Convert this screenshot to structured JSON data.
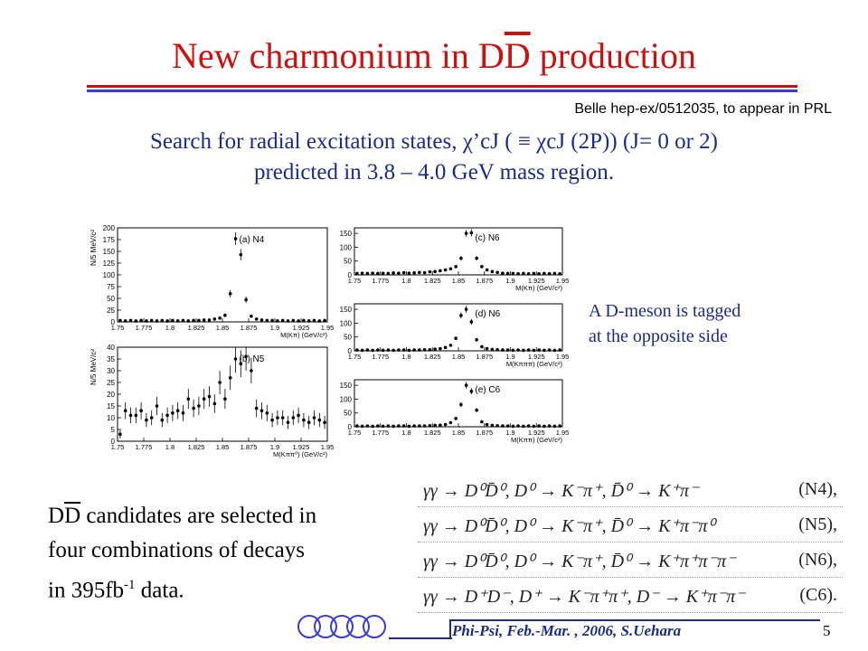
{
  "header": {
    "title": "New charmonium in DD production",
    "title_pre": "New charmonium in D",
    "title_bar": "D",
    "title_post": " production",
    "reference": "Belle hep-ex/0512035, to appear in PRL"
  },
  "headline": {
    "line1": "Search for radial excitation states, χ’cJ ( ≡ χcJ (2P)) (J= 0 or 2)",
    "line2": "predicted in 3.8 – 4.0 GeV mass region."
  },
  "side_note": {
    "line1": "A D-meson is tagged",
    "line2": "at the opposite side"
  },
  "selection": {
    "line1_bar": "D",
    "line1_pre": "D",
    "line1_rest": " candidates are selected in",
    "line2": "four combinations of decays",
    "line3_pre": "in 395fb",
    "line3_sup": "-1",
    "line3_post": " data."
  },
  "decays": [
    {
      "equation": "γγ → D⁰D̄⁰,  D⁰ → K⁻π⁺,  D̄⁰ → K⁺π⁻",
      "tag": "(N4),"
    },
    {
      "equation": "γγ → D⁰D̄⁰,  D⁰ → K⁻π⁺,  D̄⁰ → K⁺π⁻π⁰",
      "tag": "(N5),"
    },
    {
      "equation": "γγ → D⁰D̄⁰,  D⁰ → K⁻π⁺,  D̄⁰ → K⁺π⁺π⁻π⁻",
      "tag": "(N6),"
    },
    {
      "equation": "γγ → D⁺D⁻,  D⁺ → K⁻π⁺π⁺,  D⁻ → K⁺π⁻π⁻",
      "tag": "(C6)."
    }
  ],
  "footer": {
    "text": "Phi-Psi, Feb.-Mar. , 2006, S.Uehara",
    "page": "5"
  },
  "chart_data": [
    {
      "type": "scatter",
      "label": "(a) N4",
      "ylabel": "N/5 MeV/c²",
      "xlabel": "M(Kπ) (GeV/c²)",
      "xlim": [
        1.75,
        1.95
      ],
      "ylim": [
        0,
        200
      ],
      "yticks": [
        0,
        25,
        50,
        75,
        100,
        125,
        150,
        175,
        200
      ],
      "xticks": [
        "1.75",
        "1.775",
        "1.8",
        "1.825",
        "1.85",
        "1.875",
        "1.9",
        "1.925",
        "1.95"
      ],
      "points": [
        [
          1.7525,
          3
        ],
        [
          1.7575,
          2
        ],
        [
          1.7625,
          3
        ],
        [
          1.7675,
          2
        ],
        [
          1.7725,
          3
        ],
        [
          1.7775,
          2
        ],
        [
          1.7825,
          3
        ],
        [
          1.7875,
          2
        ],
        [
          1.7925,
          3
        ],
        [
          1.7975,
          2
        ],
        [
          1.8025,
          3
        ],
        [
          1.8075,
          2
        ],
        [
          1.8125,
          3
        ],
        [
          1.8175,
          2
        ],
        [
          1.8225,
          3
        ],
        [
          1.8275,
          3
        ],
        [
          1.8325,
          4
        ],
        [
          1.8375,
          4
        ],
        [
          1.8425,
          6
        ],
        [
          1.8475,
          8
        ],
        [
          1.8525,
          14
        ],
        [
          1.8575,
          60
        ],
        [
          1.8625,
          177
        ],
        [
          1.8675,
          143
        ],
        [
          1.8725,
          47
        ],
        [
          1.8775,
          12
        ],
        [
          1.8825,
          6
        ],
        [
          1.8875,
          4
        ],
        [
          1.8925,
          3
        ],
        [
          1.8975,
          3
        ],
        [
          1.9025,
          2
        ],
        [
          1.9075,
          3
        ],
        [
          1.9125,
          2
        ],
        [
          1.9175,
          3
        ],
        [
          1.9225,
          2
        ],
        [
          1.9275,
          3
        ],
        [
          1.9325,
          2
        ],
        [
          1.9375,
          3
        ],
        [
          1.9425,
          2
        ],
        [
          1.9475,
          3
        ]
      ]
    },
    {
      "type": "scatter",
      "label": "(b) N5",
      "ylabel": "N/5 MeV/c²",
      "xlabel": "M(Kππ⁰) (GeV/c²)",
      "xlim": [
        1.75,
        1.95
      ],
      "ylim": [
        0,
        40
      ],
      "yticks": [
        0,
        5,
        10,
        15,
        20,
        25,
        30,
        35,
        40
      ],
      "xticks": [
        "1.75",
        "1.775",
        "1.8",
        "1.825",
        "1.85",
        "1.875",
        "1.9",
        "1.925",
        "1.95"
      ],
      "points": [
        [
          1.7525,
          3
        ],
        [
          1.7575,
          13
        ],
        [
          1.7625,
          11
        ],
        [
          1.7675,
          11
        ],
        [
          1.7725,
          13
        ],
        [
          1.7775,
          9
        ],
        [
          1.7825,
          10
        ],
        [
          1.7875,
          15
        ],
        [
          1.7925,
          9
        ],
        [
          1.7975,
          11
        ],
        [
          1.8025,
          12
        ],
        [
          1.8075,
          13
        ],
        [
          1.8125,
          12
        ],
        [
          1.8175,
          18
        ],
        [
          1.8225,
          14
        ],
        [
          1.8275,
          15
        ],
        [
          1.8325,
          18
        ],
        [
          1.8375,
          19
        ],
        [
          1.8425,
          16
        ],
        [
          1.8475,
          25
        ],
        [
          1.8525,
          18
        ],
        [
          1.8575,
          27
        ],
        [
          1.8625,
          35
        ],
        [
          1.8675,
          33
        ],
        [
          1.8725,
          36
        ],
        [
          1.8775,
          30
        ],
        [
          1.8825,
          14
        ],
        [
          1.8875,
          13
        ],
        [
          1.8925,
          12
        ],
        [
          1.8975,
          9
        ],
        [
          1.9025,
          10
        ],
        [
          1.9075,
          10
        ],
        [
          1.9125,
          8
        ],
        [
          1.9175,
          10
        ],
        [
          1.9225,
          11
        ],
        [
          1.9275,
          9
        ],
        [
          1.9325,
          8
        ],
        [
          1.9375,
          10
        ],
        [
          1.9425,
          9
        ],
        [
          1.9475,
          8
        ]
      ]
    },
    {
      "type": "scatter",
      "label": "(c) N6",
      "ylabel": "",
      "xlabel": "M(Kπ) (GeV/c²)",
      "xlim": [
        1.75,
        1.95
      ],
      "ylim": [
        0,
        170
      ],
      "yticks": [
        0,
        50,
        100,
        150
      ],
      "xticks": [
        "1.75",
        "1.775",
        "1.8",
        "1.825",
        "1.85",
        "1.875",
        "1.9",
        "1.925",
        "1.95"
      ],
      "points": [
        [
          1.7525,
          5
        ],
        [
          1.7575,
          6
        ],
        [
          1.7625,
          5
        ],
        [
          1.7675,
          6
        ],
        [
          1.7725,
          5
        ],
        [
          1.7775,
          6
        ],
        [
          1.7825,
          5
        ],
        [
          1.7875,
          7
        ],
        [
          1.7925,
          6
        ],
        [
          1.7975,
          8
        ],
        [
          1.8025,
          6
        ],
        [
          1.8075,
          7
        ],
        [
          1.8125,
          9
        ],
        [
          1.8175,
          8
        ],
        [
          1.8225,
          11
        ],
        [
          1.8275,
          12
        ],
        [
          1.8325,
          15
        ],
        [
          1.8375,
          18
        ],
        [
          1.8425,
          22
        ],
        [
          1.8475,
          30
        ],
        [
          1.8525,
          60
        ],
        [
          1.8575,
          150
        ],
        [
          1.8625,
          152
        ],
        [
          1.8675,
          60
        ],
        [
          1.8725,
          30
        ],
        [
          1.8775,
          18
        ],
        [
          1.8825,
          12
        ],
        [
          1.8875,
          9
        ],
        [
          1.8925,
          6
        ],
        [
          1.8975,
          5
        ],
        [
          1.9025,
          5
        ],
        [
          1.9075,
          4
        ],
        [
          1.9125,
          5
        ],
        [
          1.9175,
          4
        ],
        [
          1.9225,
          5
        ],
        [
          1.9275,
          4
        ],
        [
          1.9325,
          5
        ],
        [
          1.9375,
          4
        ],
        [
          1.9425,
          5
        ],
        [
          1.9475,
          4
        ]
      ]
    },
    {
      "type": "scatter",
      "label": "(d) N6",
      "ylabel": "",
      "xlabel": "M(Kπππ) (GeV/c²)",
      "xlim": [
        1.75,
        1.95
      ],
      "ylim": [
        0,
        170
      ],
      "yticks": [
        0,
        50,
        100,
        150
      ],
      "xticks": [
        "1.75",
        "1.775",
        "1.8",
        "1.825",
        "1.85",
        "1.875",
        "1.9",
        "1.925",
        "1.95"
      ],
      "points": [
        [
          1.7525,
          3
        ],
        [
          1.7575,
          2
        ],
        [
          1.7625,
          3
        ],
        [
          1.7675,
          2
        ],
        [
          1.7725,
          3
        ],
        [
          1.7775,
          2
        ],
        [
          1.7825,
          3
        ],
        [
          1.7875,
          2
        ],
        [
          1.7925,
          3
        ],
        [
          1.7975,
          3
        ],
        [
          1.8025,
          2
        ],
        [
          1.8075,
          3
        ],
        [
          1.8125,
          3
        ],
        [
          1.8175,
          4
        ],
        [
          1.8225,
          4
        ],
        [
          1.8275,
          6
        ],
        [
          1.8325,
          8
        ],
        [
          1.8375,
          12
        ],
        [
          1.8425,
          20
        ],
        [
          1.8475,
          45
        ],
        [
          1.8525,
          128
        ],
        [
          1.8575,
          150
        ],
        [
          1.8625,
          105
        ],
        [
          1.8675,
          40
        ],
        [
          1.8725,
          15
        ],
        [
          1.8775,
          8
        ],
        [
          1.8825,
          5
        ],
        [
          1.8875,
          4
        ],
        [
          1.8925,
          3
        ],
        [
          1.8975,
          3
        ],
        [
          1.9025,
          2
        ],
        [
          1.9075,
          3
        ],
        [
          1.9125,
          2
        ],
        [
          1.9175,
          3
        ],
        [
          1.9225,
          2
        ],
        [
          1.9275,
          3
        ],
        [
          1.9325,
          2
        ],
        [
          1.9375,
          3
        ],
        [
          1.9425,
          2
        ],
        [
          1.9475,
          3
        ]
      ]
    },
    {
      "type": "scatter",
      "label": "(e) C6",
      "ylabel": "",
      "xlabel": "M(Kππ) (GeV/c²)",
      "xlim": [
        1.75,
        1.95
      ],
      "ylim": [
        0,
        170
      ],
      "yticks": [
        0,
        50,
        100,
        150
      ],
      "xticks": [
        "1.75",
        "1.775",
        "1.8",
        "1.825",
        "1.85",
        "1.875",
        "1.9",
        "1.925",
        "1.95"
      ],
      "points": [
        [
          1.7525,
          3
        ],
        [
          1.7575,
          2
        ],
        [
          1.7625,
          3
        ],
        [
          1.7675,
          2
        ],
        [
          1.7725,
          3
        ],
        [
          1.7775,
          2
        ],
        [
          1.7825,
          3
        ],
        [
          1.7875,
          2
        ],
        [
          1.7925,
          3
        ],
        [
          1.7975,
          3
        ],
        [
          1.8025,
          2
        ],
        [
          1.8075,
          3
        ],
        [
          1.8125,
          3
        ],
        [
          1.8175,
          3
        ],
        [
          1.8225,
          4
        ],
        [
          1.8275,
          5
        ],
        [
          1.8325,
          6
        ],
        [
          1.8375,
          8
        ],
        [
          1.8425,
          15
        ],
        [
          1.8475,
          30
        ],
        [
          1.8525,
          80
        ],
        [
          1.8575,
          150
        ],
        [
          1.8625,
          128
        ],
        [
          1.8675,
          60
        ],
        [
          1.8725,
          18
        ],
        [
          1.8775,
          8
        ],
        [
          1.8825,
          5
        ],
        [
          1.8875,
          4
        ],
        [
          1.8925,
          3
        ],
        [
          1.8975,
          3
        ],
        [
          1.9025,
          2
        ],
        [
          1.9075,
          3
        ],
        [
          1.9125,
          2
        ],
        [
          1.9175,
          3
        ],
        [
          1.9225,
          2
        ],
        [
          1.9275,
          3
        ],
        [
          1.9325,
          2
        ],
        [
          1.9375,
          3
        ],
        [
          1.9425,
          2
        ],
        [
          1.9475,
          3
        ]
      ]
    }
  ]
}
